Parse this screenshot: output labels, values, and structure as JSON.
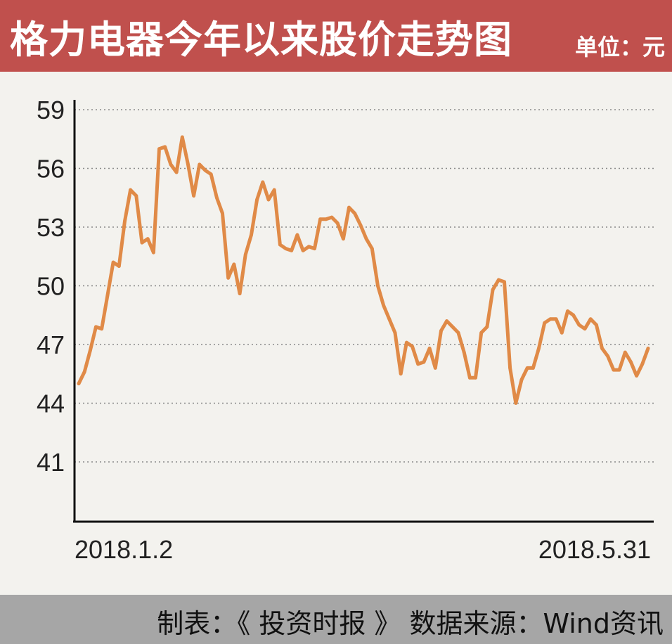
{
  "header": {
    "title": "格力电器今年以来股价走势图",
    "unit": "单位：元"
  },
  "footer": {
    "credit": "制表：《 投资时报 》  数据来源：Wind资讯"
  },
  "colors": {
    "header_bg": "#c0504d",
    "line": "#e08a47",
    "footer_bg": "#a6a6a6",
    "background": "#f3f2ee"
  },
  "chart_data": {
    "type": "line",
    "title": "格力电器今年以来股价走势图",
    "ylabel": "单位：元",
    "xlabel": "",
    "y_ticks": [
      59,
      56,
      53,
      50,
      47,
      44,
      41
    ],
    "ylim": [
      38,
      59.5
    ],
    "x_tick_labels": [
      "2018.1.2",
      "2018.5.31"
    ],
    "grid": "horizontal-dotted",
    "series": [
      {
        "values": [
          45.0,
          45.6,
          46.7,
          47.9,
          47.8,
          49.5,
          51.2,
          51.0,
          53.3,
          54.9,
          54.6,
          52.2,
          52.4,
          51.7,
          57.0,
          57.1,
          56.2,
          55.8,
          57.6,
          56.2,
          54.6,
          56.2,
          55.9,
          55.7,
          54.5,
          53.7,
          50.4,
          51.1,
          49.6,
          51.6,
          52.6,
          54.4,
          55.3,
          54.4,
          54.9,
          52.1,
          51.9,
          51.8,
          52.6,
          51.8,
          52.0,
          51.9,
          53.4,
          53.4,
          53.5,
          53.2,
          52.4,
          54.0,
          53.7,
          53.1,
          52.4,
          51.9,
          50.0,
          49.0,
          48.3,
          47.6,
          45.5,
          47.1,
          46.9,
          46.0,
          46.1,
          46.8,
          45.8,
          47.7,
          48.2,
          47.9,
          47.6,
          46.6,
          45.3,
          45.3,
          47.6,
          47.9,
          49.8,
          50.3,
          50.2,
          45.8,
          44.0,
          45.2,
          45.8,
          45.8,
          46.8,
          48.1,
          48.3,
          48.3,
          47.6,
          48.7,
          48.5,
          48.0,
          47.8,
          48.3,
          48.0,
          46.8,
          46.4,
          45.7,
          45.7,
          46.6,
          46.1,
          45.4,
          46.0,
          46.8
        ]
      }
    ]
  }
}
